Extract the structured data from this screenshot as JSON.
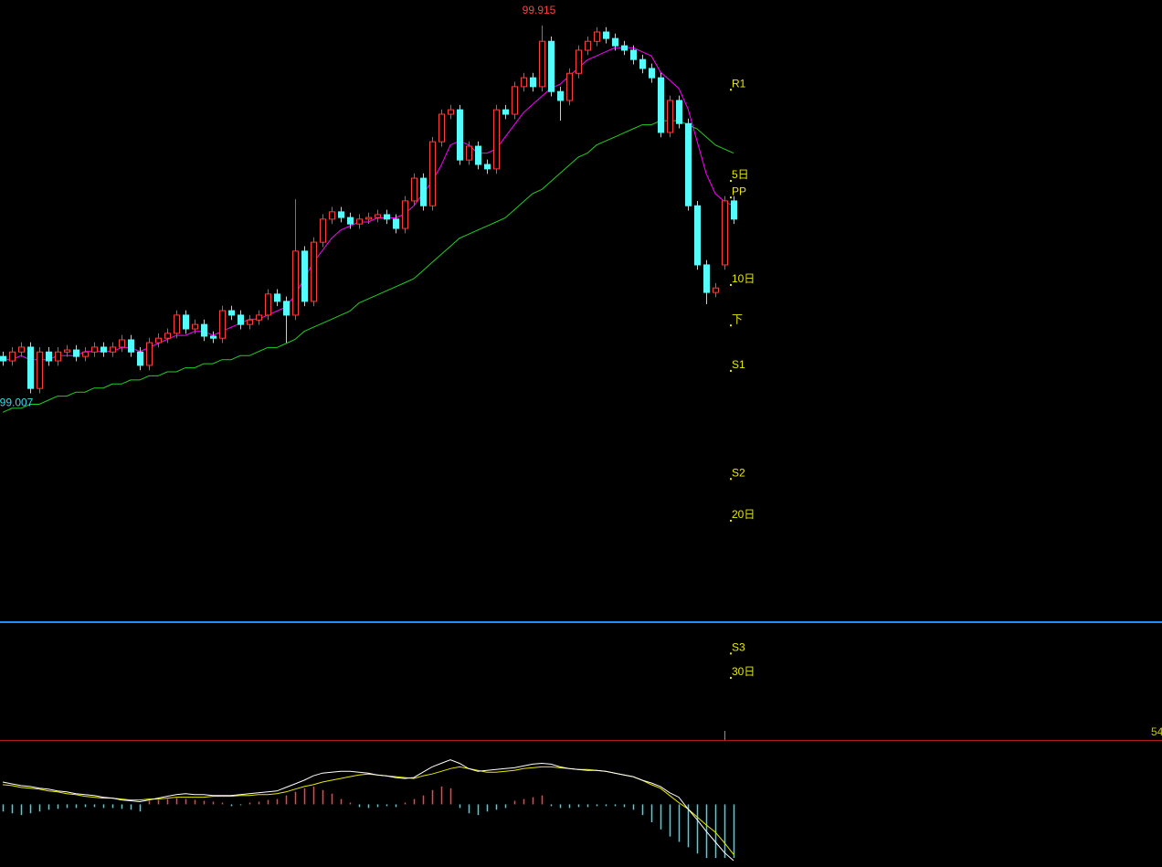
{
  "chart_data": {
    "type": "candlestick",
    "up_color": "#ff3c3c",
    "down_color": "#54fcfc",
    "ylim": [
      98.151,
      99.978
    ],
    "open": [
      99.098,
      99.087,
      99.109,
      99.121,
      99.019,
      99.109,
      99.087,
      99.109,
      99.114,
      99.098,
      99.109,
      99.121,
      99.109,
      99.121,
      99.139,
      99.109,
      99.076,
      99.132,
      99.143,
      99.155,
      99.2,
      99.166,
      99.177,
      99.148,
      99.143,
      99.211,
      99.2,
      99.177,
      99.188,
      99.2,
      99.252,
      99.234,
      99.2,
      99.358,
      99.234,
      99.38,
      99.437,
      99.455,
      99.441,
      99.425,
      99.437,
      99.441,
      99.448,
      99.437,
      99.414,
      99.482,
      99.538,
      99.47,
      99.628,
      99.696,
      99.707,
      99.583,
      99.617,
      99.572,
      99.561,
      99.707,
      99.696,
      99.764,
      99.786,
      99.764,
      99.876,
      99.752,
      99.73,
      99.797,
      99.854,
      99.876,
      99.899,
      99.883,
      99.865,
      99.854,
      99.831,
      99.809,
      99.786,
      99.651,
      99.73,
      99.673,
      99.47,
      99.324,
      99.256,
      99.324,
      99.482
    ],
    "high": [
      99.11,
      99.121,
      99.133,
      99.133,
      99.121,
      99.121,
      99.121,
      99.126,
      99.126,
      99.121,
      99.133,
      99.133,
      99.133,
      99.151,
      99.151,
      99.121,
      99.144,
      99.155,
      99.167,
      99.212,
      99.212,
      99.189,
      99.189,
      99.16,
      99.223,
      99.223,
      99.212,
      99.2,
      99.212,
      99.264,
      99.264,
      99.246,
      99.486,
      99.37,
      99.392,
      99.449,
      99.467,
      99.467,
      99.453,
      99.449,
      99.453,
      99.46,
      99.46,
      99.449,
      99.494,
      99.55,
      99.55,
      99.64,
      99.708,
      99.719,
      99.719,
      99.629,
      99.629,
      99.584,
      99.719,
      99.719,
      99.776,
      99.798,
      99.798,
      99.915,
      99.888,
      99.764,
      99.809,
      99.866,
      99.888,
      99.911,
      99.911,
      99.895,
      99.877,
      99.866,
      99.843,
      99.821,
      99.798,
      99.742,
      99.742,
      99.685,
      99.482,
      99.336,
      99.279,
      99.494,
      99.494
    ],
    "low": [
      99.075,
      99.075,
      99.097,
      99.007,
      99.007,
      99.075,
      99.075,
      99.097,
      99.086,
      99.086,
      99.097,
      99.097,
      99.097,
      99.109,
      99.097,
      99.064,
      99.064,
      99.12,
      99.131,
      99.143,
      99.154,
      99.154,
      99.136,
      99.131,
      99.131,
      99.188,
      99.165,
      99.165,
      99.176,
      99.188,
      99.222,
      99.132,
      99.188,
      99.222,
      99.222,
      99.368,
      99.425,
      99.429,
      99.413,
      99.413,
      99.425,
      99.429,
      99.425,
      99.402,
      99.402,
      99.47,
      99.458,
      99.458,
      99.616,
      99.684,
      99.571,
      99.571,
      99.56,
      99.549,
      99.549,
      99.684,
      99.684,
      99.752,
      99.752,
      99.752,
      99.74,
      99.68,
      99.718,
      99.785,
      99.842,
      99.864,
      99.871,
      99.853,
      99.842,
      99.819,
      99.797,
      99.774,
      99.639,
      99.639,
      99.661,
      99.458,
      99.312,
      99.227,
      99.244,
      99.312,
      99.425
    ],
    "close": [
      99.087,
      99.109,
      99.121,
      99.019,
      99.109,
      99.087,
      99.109,
      99.114,
      99.098,
      99.109,
      99.121,
      99.109,
      99.121,
      99.139,
      99.109,
      99.076,
      99.132,
      99.143,
      99.155,
      99.2,
      99.166,
      99.177,
      99.148,
      99.143,
      99.211,
      99.2,
      99.177,
      99.188,
      99.2,
      99.252,
      99.234,
      99.2,
      99.358,
      99.234,
      99.38,
      99.437,
      99.455,
      99.441,
      99.425,
      99.437,
      99.441,
      99.448,
      99.437,
      99.414,
      99.482,
      99.538,
      99.47,
      99.628,
      99.696,
      99.707,
      99.583,
      99.617,
      99.572,
      99.561,
      99.707,
      99.696,
      99.764,
      99.786,
      99.764,
      99.876,
      99.752,
      99.73,
      99.797,
      99.854,
      99.876,
      99.899,
      99.883,
      99.865,
      99.854,
      99.831,
      99.809,
      99.786,
      99.651,
      99.73,
      99.673,
      99.47,
      99.324,
      99.256,
      99.267,
      99.482,
      99.437
    ],
    "series": [
      {
        "color": "#ff00ff",
        "values": [
          99.09,
          99.09,
          99.1,
          99.09,
          99.09,
          99.09,
          99.1,
          99.1,
          99.1,
          99.11,
          99.11,
          99.11,
          99.11,
          99.12,
          99.12,
          99.11,
          99.12,
          99.13,
          99.14,
          99.15,
          99.15,
          99.16,
          99.16,
          99.15,
          99.16,
          99.17,
          99.18,
          99.19,
          99.19,
          99.2,
          99.21,
          99.22,
          99.25,
          99.29,
          99.33,
          99.36,
          99.39,
          99.41,
          99.42,
          99.43,
          99.43,
          99.44,
          99.44,
          99.44,
          99.45,
          99.47,
          99.5,
          99.53,
          99.57,
          99.62,
          99.63,
          99.62,
          99.6,
          99.6,
          99.61,
          99.64,
          99.67,
          99.7,
          99.72,
          99.74,
          99.76,
          99.77,
          99.79,
          99.81,
          99.83,
          99.84,
          99.85,
          99.86,
          99.86,
          99.86,
          99.85,
          99.84,
          99.8,
          99.78,
          99.76,
          99.71,
          99.63,
          99.55,
          99.5,
          99.48,
          99.47
        ]
      },
      {
        "color": "#20d020",
        "values": [
          98.96,
          98.97,
          98.97,
          98.98,
          98.98,
          98.99,
          99.0,
          99.0,
          99.01,
          99.01,
          99.02,
          99.02,
          99.03,
          99.03,
          99.04,
          99.04,
          99.05,
          99.05,
          99.06,
          99.06,
          99.07,
          99.07,
          99.08,
          99.08,
          99.09,
          99.09,
          99.1,
          99.1,
          99.11,
          99.12,
          99.12,
          99.13,
          99.14,
          99.16,
          99.17,
          99.18,
          99.19,
          99.2,
          99.21,
          99.23,
          99.24,
          99.25,
          99.26,
          99.27,
          99.28,
          99.29,
          99.31,
          99.33,
          99.35,
          99.37,
          99.39,
          99.4,
          99.41,
          99.42,
          99.43,
          99.44,
          99.46,
          99.48,
          99.5,
          99.51,
          99.53,
          99.55,
          99.57,
          99.59,
          99.6,
          99.62,
          99.63,
          99.64,
          99.65,
          99.66,
          99.67,
          99.67,
          99.68,
          99.68,
          99.68,
          99.67,
          99.66,
          99.64,
          99.62,
          99.61,
          99.6
        ]
      }
    ],
    "levels": [
      {
        "label": "R1",
        "value": 99.77
      },
      {
        "label": "5日",
        "value": 99.545
      },
      {
        "label": "PP",
        "value": 99.504
      },
      {
        "label": "10日",
        "value": 99.288
      },
      {
        "label": "下",
        "value": 99.188
      },
      {
        "label": "S1",
        "value": 99.076
      },
      {
        "label": "S2",
        "value": 98.809
      },
      {
        "label": "20日",
        "value": 98.706
      },
      {
        "label": "S3",
        "value": 98.378
      },
      {
        "label": "30日",
        "value": 98.318
      }
    ],
    "level_color": "#e8e800",
    "hline": {
      "value": 98.442,
      "color": "#1e8fff"
    },
    "right_label": "54",
    "macd": {
      "ylim": [
        -0.065,
        0.07
      ],
      "dif": {
        "color": "#ffffff",
        "values": [
          0.025,
          0.023,
          0.021,
          0.02,
          0.018,
          0.017,
          0.015,
          0.014,
          0.012,
          0.011,
          0.01,
          0.008,
          0.007,
          0.005,
          0.004,
          0.003,
          0.005,
          0.007,
          0.009,
          0.011,
          0.012,
          0.011,
          0.011,
          0.01,
          0.01,
          0.01,
          0.011,
          0.012,
          0.013,
          0.014,
          0.015,
          0.019,
          0.023,
          0.027,
          0.032,
          0.035,
          0.036,
          0.037,
          0.037,
          0.036,
          0.035,
          0.033,
          0.032,
          0.03,
          0.029,
          0.03,
          0.036,
          0.042,
          0.046,
          0.05,
          0.046,
          0.04,
          0.037,
          0.038,
          0.039,
          0.04,
          0.041,
          0.043,
          0.045,
          0.046,
          0.045,
          0.042,
          0.04,
          0.039,
          0.038,
          0.038,
          0.037,
          0.035,
          0.033,
          0.031,
          0.027,
          0.024,
          0.02,
          0.013,
          0.008,
          -0.005,
          -0.017,
          -0.03,
          -0.042,
          -0.054,
          -0.063
        ]
      },
      "dea": {
        "color": "#e8e800",
        "values": [
          0.022,
          0.021,
          0.019,
          0.018,
          0.017,
          0.015,
          0.014,
          0.012,
          0.011,
          0.009,
          0.008,
          0.007,
          0.007,
          0.006,
          0.005,
          0.005,
          0.006,
          0.006,
          0.007,
          0.008,
          0.008,
          0.008,
          0.008,
          0.009,
          0.009,
          0.009,
          0.01,
          0.01,
          0.011,
          0.011,
          0.012,
          0.014,
          0.017,
          0.02,
          0.022,
          0.025,
          0.027,
          0.029,
          0.031,
          0.033,
          0.034,
          0.033,
          0.032,
          0.031,
          0.03,
          0.029,
          0.032,
          0.034,
          0.037,
          0.04,
          0.042,
          0.04,
          0.038,
          0.036,
          0.036,
          0.037,
          0.038,
          0.04,
          0.041,
          0.042,
          0.042,
          0.041,
          0.04,
          0.039,
          0.039,
          0.038,
          0.037,
          0.035,
          0.033,
          0.031,
          0.027,
          0.022,
          0.018,
          0.01,
          0.002,
          -0.005,
          -0.014,
          -0.023,
          -0.031,
          -0.043,
          -0.056
        ]
      },
      "hist": {
        "up_color": "#ff4040",
        "down_color": "#40d8e8",
        "values": [
          -0.008,
          -0.01,
          -0.012,
          -0.01,
          -0.008,
          -0.006,
          -0.005,
          -0.004,
          -0.004,
          -0.003,
          -0.003,
          -0.004,
          -0.004,
          -0.005,
          -0.006,
          -0.008,
          0.004,
          0.005,
          0.006,
          0.007,
          0.006,
          0.005,
          0.004,
          0.003,
          0.002,
          -0.002,
          -0.001,
          0.002,
          0.003,
          0.005,
          0.006,
          0.01,
          0.014,
          0.018,
          0.02,
          0.016,
          0.012,
          0.006,
          0.002,
          -0.003,
          -0.004,
          -0.003,
          -0.002,
          -0.003,
          0.002,
          0.006,
          0.01,
          0.016,
          0.02,
          0.018,
          -0.004,
          -0.01,
          -0.012,
          -0.008,
          -0.006,
          -0.004,
          0.004,
          0.006,
          0.008,
          0.01,
          -0.002,
          -0.004,
          -0.004,
          -0.003,
          -0.003,
          -0.002,
          -0.002,
          -0.002,
          -0.003,
          -0.006,
          -0.012,
          -0.02,
          -0.028,
          -0.036,
          -0.042,
          -0.048,
          -0.055,
          -0.06,
          -0.06,
          -0.06,
          -0.06
        ]
      }
    }
  }
}
